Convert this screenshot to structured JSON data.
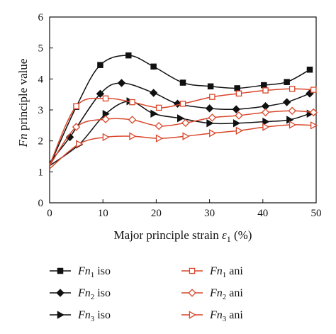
{
  "chart_data": {
    "type": "line",
    "xlabel_main": "Major principle strain ",
    "xlabel_symbol": "ε",
    "xlabel_sub": "1",
    "xlabel_unit": " (%)",
    "ylabel_italic": "Fn",
    "ylabel_rest": " principle value",
    "xlim": [
      0,
      50
    ],
    "ylim": [
      0,
      6
    ],
    "xticks": [
      "0",
      "10",
      "20",
      "30",
      "40",
      "50"
    ],
    "yticks": [
      "0",
      "1",
      "2",
      "3",
      "4",
      "5",
      "6"
    ],
    "grid": false,
    "legend_position": "bottom",
    "series": [
      {
        "name_italic": "Fn",
        "name_sub": "1",
        "name_suffix": " iso",
        "color": "#111111",
        "marker": "square",
        "filled": true,
        "x": [
          0,
          5,
          9.5,
          14.8,
          19.5,
          25,
          30.2,
          35.2,
          40.2,
          44.5,
          48.8
        ],
        "y": [
          1.2,
          3.1,
          4.45,
          4.76,
          4.4,
          3.88,
          3.76,
          3.7,
          3.8,
          3.9,
          4.3
        ]
      },
      {
        "name_italic": "Fn",
        "name_sub": "2",
        "name_suffix": " iso",
        "color": "#111111",
        "marker": "diamond",
        "filled": true,
        "x": [
          0,
          3.8,
          9.5,
          13.5,
          19.5,
          24,
          30,
          35,
          40.5,
          44.5,
          48.8
        ],
        "y": [
          1.3,
          2.12,
          3.52,
          3.87,
          3.55,
          3.2,
          3.05,
          3.02,
          3.12,
          3.25,
          3.53
        ]
      },
      {
        "name_italic": "Fn",
        "name_sub": "3",
        "name_suffix": " iso",
        "color": "#111111",
        "marker": "triangle-right",
        "filled": true,
        "x": [
          0,
          5.5,
          10.5,
          15,
          19.5,
          24.5,
          30,
          35,
          40.5,
          45,
          48.8
        ],
        "y": [
          1.2,
          1.88,
          2.87,
          3.28,
          2.88,
          2.73,
          2.57,
          2.57,
          2.62,
          2.68,
          2.88
        ]
      },
      {
        "name_italic": "Fn",
        "name_sub": "1",
        "name_suffix": " ani",
        "color": "#d9472b",
        "marker": "square",
        "filled": false,
        "x": [
          0,
          5,
          10.5,
          15.5,
          20.5,
          25,
          30.5,
          35.5,
          40.5,
          45.5,
          49.5
        ],
        "y": [
          1.22,
          3.12,
          3.37,
          3.25,
          3.07,
          3.2,
          3.42,
          3.53,
          3.63,
          3.68,
          3.65
        ]
      },
      {
        "name_italic": "Fn",
        "name_sub": "2",
        "name_suffix": " ani",
        "color": "#d9472b",
        "marker": "diamond",
        "filled": false,
        "x": [
          0,
          5,
          10.5,
          15.5,
          20.5,
          25.5,
          30.5,
          35.5,
          40.5,
          45.5,
          49.5
        ],
        "y": [
          1.2,
          2.45,
          2.7,
          2.68,
          2.48,
          2.58,
          2.75,
          2.82,
          2.92,
          2.97,
          2.92
        ]
      },
      {
        "name_italic": "Fn",
        "name_sub": "3",
        "name_suffix": " ani",
        "color": "#d9472b",
        "marker": "triangle-right",
        "filled": false,
        "x": [
          0,
          5.5,
          10.5,
          15.5,
          20.5,
          25.5,
          30.5,
          35.5,
          40.5,
          45.5,
          49.5
        ],
        "y": [
          1.1,
          1.9,
          2.12,
          2.15,
          2.08,
          2.15,
          2.25,
          2.33,
          2.45,
          2.52,
          2.5
        ]
      }
    ]
  }
}
